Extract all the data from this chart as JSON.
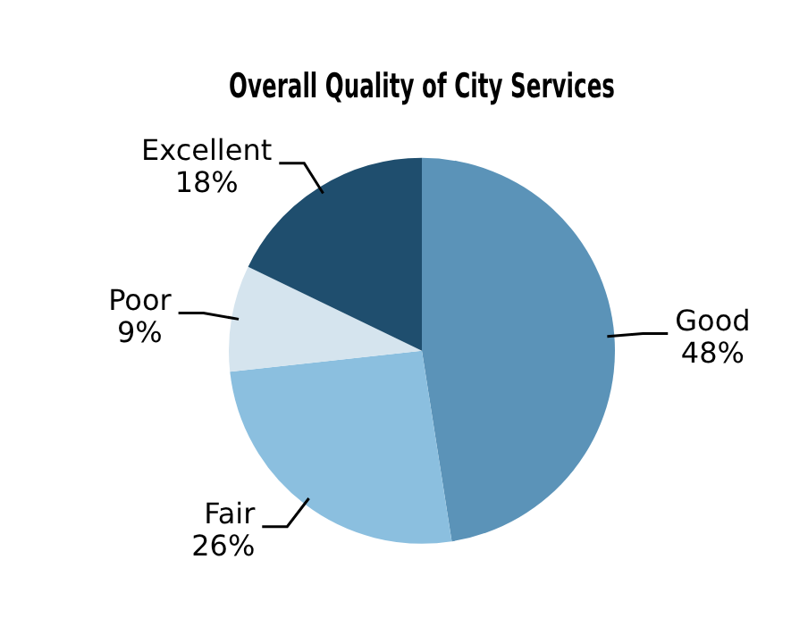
{
  "chart_data": {
    "type": "pie",
    "title": "Overall Quality of City Services",
    "categories": [
      "Good",
      "Fair",
      "Poor",
      "Excellent"
    ],
    "values": [
      48,
      26,
      9,
      18
    ],
    "value_labels": [
      "48%",
      "26%",
      "9%",
      "18%"
    ],
    "colors": [
      "#5b93b8",
      "#8bbfdf",
      "#d5e4ee",
      "#1f4e6e"
    ],
    "legend": false
  }
}
